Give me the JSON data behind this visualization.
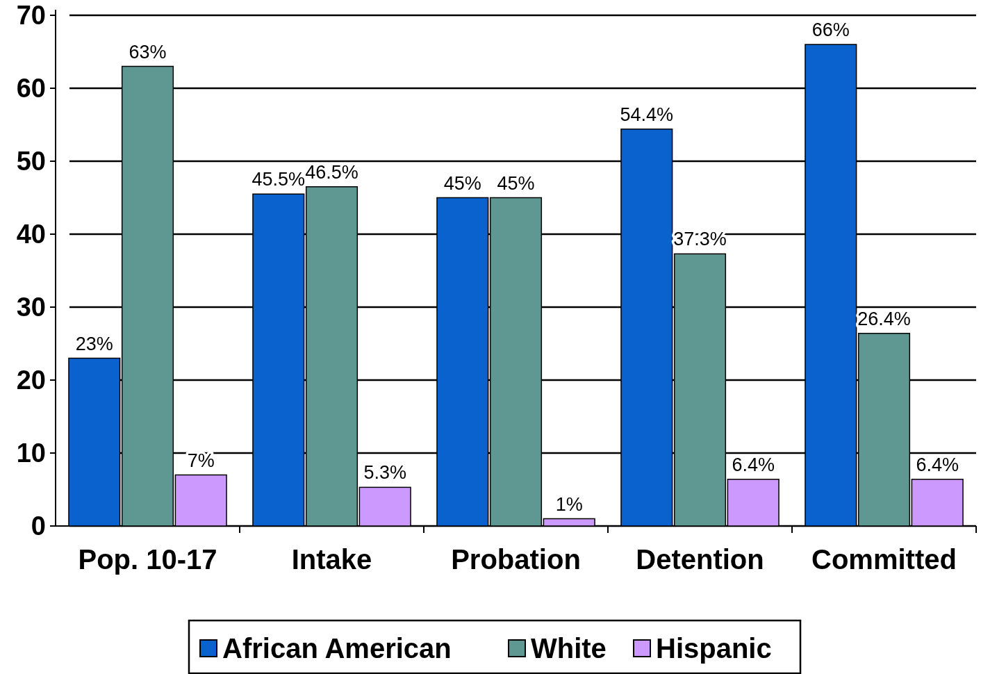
{
  "chart_data": {
    "type": "bar",
    "categories": [
      "Pop. 10-17",
      "Intake",
      "Probation",
      "Detention",
      "Committed"
    ],
    "series": [
      {
        "name": "African American",
        "color": "#0a62cf",
        "values": [
          23,
          45.5,
          45,
          54.4,
          66
        ],
        "value_labels": [
          "23%",
          "45.5%",
          "45%",
          "54.4%",
          "66%"
        ]
      },
      {
        "name": "White",
        "color": "#5f9792",
        "values": [
          63,
          46.5,
          45,
          37.3,
          26.4
        ],
        "value_labels": [
          "63%",
          "46.5%",
          "45%",
          "37.3%",
          "26.4%"
        ]
      },
      {
        "name": "Hispanic",
        "color": "#cc99ff",
        "values": [
          7,
          5.3,
          1,
          6.4,
          6.4
        ],
        "value_labels": [
          "7%",
          "5.3%",
          "1%",
          "6.4%",
          "6.4%"
        ]
      }
    ],
    "ylim": [
      0,
      70
    ],
    "yticks": [
      0,
      10,
      20,
      30,
      40,
      50,
      60,
      70
    ],
    "grid": "y",
    "legend": "bottom"
  }
}
